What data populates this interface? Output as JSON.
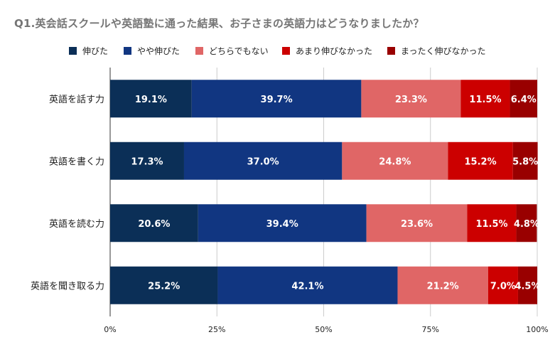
{
  "chart_data": {
    "type": "bar",
    "orientation": "horizontal",
    "stacked": true,
    "percent": true,
    "title": "Q1.英会話スクールや英語塾に通った結果、お子さまの英語力はどうなりましたか？",
    "categories": [
      "英語を話す力",
      "英語を書く力",
      "英語を読む力",
      "英語を聞き取る力"
    ],
    "series": [
      {
        "name": "伸びた",
        "color": "#0b2f57",
        "values": [
          19.1,
          17.3,
          20.6,
          25.2
        ]
      },
      {
        "name": "やや伸びた",
        "color": "#113681",
        "values": [
          39.7,
          37.0,
          39.4,
          42.1
        ]
      },
      {
        "name": "どちらでもない",
        "color": "#e06666",
        "values": [
          23.3,
          24.8,
          23.6,
          21.2
        ]
      },
      {
        "name": "あまり伸びなかった",
        "color": "#cc0000",
        "values": [
          11.5,
          15.2,
          11.5,
          7.0
        ]
      },
      {
        "name": "まったく伸びなかった",
        "color": "#990000",
        "values": [
          6.4,
          5.8,
          4.8,
          4.5
        ]
      }
    ],
    "data_labels": [
      [
        "19.1%",
        "17.3%",
        "20.6%",
        "25.2%"
      ],
      [
        "39.7%",
        "37.0%",
        "39.4%",
        "42.1%"
      ],
      [
        "23.3%",
        "24.8%",
        "23.6%",
        "21.2%"
      ],
      [
        "11.5%",
        "15.2%",
        "11.5%",
        "7.0%"
      ],
      [
        "6.4%",
        "5.8%",
        "4.8%",
        "4.5%"
      ]
    ],
    "x_ticks": [
      0,
      25,
      50,
      75,
      100
    ],
    "x_tick_labels": [
      "0%",
      "25%",
      "50%",
      "75%",
      "100%"
    ],
    "xlim": [
      0,
      100
    ],
    "grid": true,
    "legend_position": "top"
  }
}
